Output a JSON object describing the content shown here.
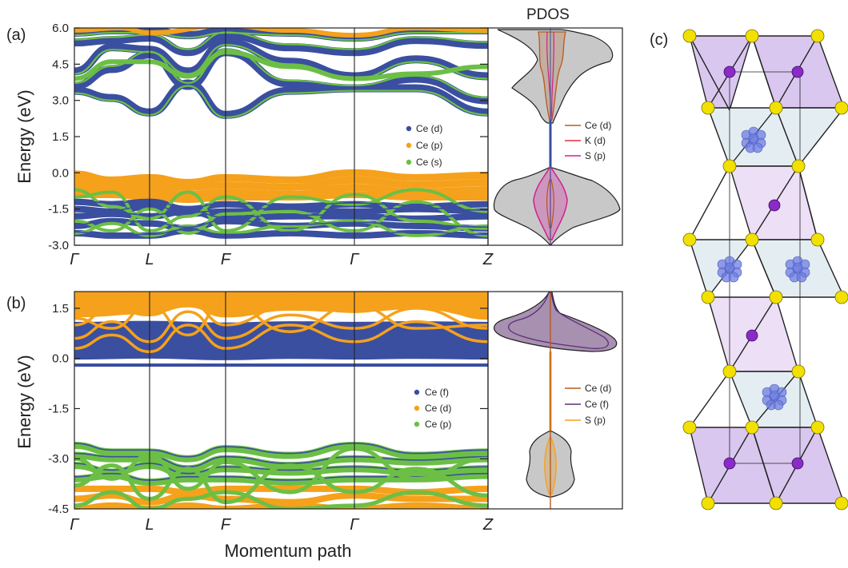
{
  "panel_labels": [
    "(a)",
    "(b)",
    "(c)"
  ],
  "pdos_title": "PDOS",
  "colors": {
    "ce_d_band": "#f5a11c",
    "ce_f_band": "#3a4fa0",
    "green_band": "#6cbf45",
    "pdos_ce_d": "#b85a1e",
    "pdos_k_d": "#e0303a",
    "pdos_s_p_a": "#d0208a",
    "pdos_ce_f": "#5c2d7a",
    "pdos_s_p_b": "#f5a11c",
    "pdos_fill_grey": "#c8c8c8",
    "pdos_fill_purple": "#8a6b96",
    "poly_light_purple": "#d9c7ef",
    "poly_light_cyan": "#e4eef2",
    "s_atom": "#f2e000",
    "k_atom": "#8a2bc8",
    "ce_cluster": "#6f7ee0"
  },
  "chart_data": [
    {
      "type": "line",
      "panel": "(a)",
      "subtype": "band-structure",
      "ylabel": "Energy (eV)",
      "xlabel": "",
      "ylim": [
        -3.0,
        6.0
      ],
      "yticks": [
        "6.0",
        "4.5",
        "3.0",
        "1.5",
        "0.0",
        "-1.5",
        "-3.0"
      ],
      "ytick_values": [
        6.0,
        4.5,
        3.0,
        1.5,
        0.0,
        -1.5,
        -3.0
      ],
      "kpath": [
        "Γ",
        "L",
        "F",
        "Γ",
        "Z"
      ],
      "legend": [
        "Ce (d)",
        "Ce (p)",
        "Ce (s)"
      ],
      "conduction_bands_min_eV": 2.6,
      "valence_bands_max_eV": 0.0,
      "valence_bands_min_eV": -2.8
    },
    {
      "type": "area",
      "panel": "(a) PDOS",
      "title": "PDOS",
      "legend": [
        "Ce (d)",
        "K (d)",
        "S (p)"
      ],
      "ylim": [
        -3.0,
        6.0
      ]
    },
    {
      "type": "line",
      "panel": "(b)",
      "subtype": "band-structure",
      "ylabel": "Energy (eV)",
      "xlabel": "Momentum path",
      "ylim": [
        -4.5,
        2.0
      ],
      "yticks": [
        "1.5",
        "0.0",
        "-1.5",
        "-3.0",
        "-4.5"
      ],
      "ytick_values": [
        1.5,
        0.0,
        -1.5,
        -3.0,
        -4.5
      ],
      "kpath": [
        "Γ",
        "L",
        "F",
        "Γ",
        "Z"
      ],
      "legend": [
        "Ce (f)",
        "Ce (d)",
        "Ce (p)"
      ],
      "f_bands_range_eV": [
        0.0,
        1.1
      ],
      "valence_bands_max_eV": -2.6
    },
    {
      "type": "area",
      "panel": "(b) PDOS",
      "legend": [
        "Ce (d)",
        "Ce (f)",
        "S (p)"
      ],
      "ylim": [
        -4.5,
        2.0
      ]
    }
  ]
}
